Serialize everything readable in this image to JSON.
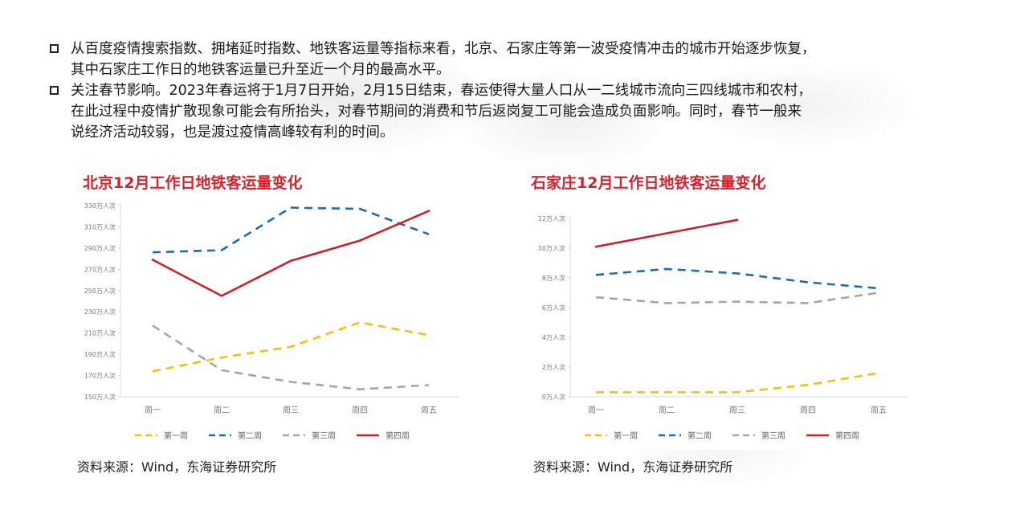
{
  "bullets": [
    {
      "lines": [
        "从百度疫情搜索指数、拥堵延时指数、地铁客运量等指标来看，北京、石家庄等第一波受疫情冲击的城市开始逐步恢复，",
        "其中石家庄工作日的地铁客运量已升至近一个月的最高水平。"
      ]
    },
    {
      "lines": [
        "关注春节影响。2023年春运将于1月7日开始，2月15日结束，春运使得大量人口从一二线城市流向三四线城市和农村，",
        "在此过程中疫情扩散现象可能会有所抬头，对春节期间的消费和节后返岗复工可能会造成负面影响。同时，春节一般来",
        "说经济活动较弱，也是渡过疫情高峰较有利的时间。"
      ]
    }
  ],
  "colors": {
    "week1": "#f2c014",
    "week2": "#1e6fa8",
    "week3": "#a6a6a6",
    "week4": "#c8232c",
    "title": "#d1242f"
  },
  "chart_data": [
    {
      "type": "line",
      "title": "北京12月工作日地铁客运量变化",
      "categories": [
        "周一",
        "周二",
        "周三",
        "周四",
        "周五"
      ],
      "ylim": [
        150,
        330
      ],
      "yticks": [
        150,
        170,
        190,
        210,
        230,
        250,
        270,
        290,
        310,
        330
      ],
      "ytick_labels": [
        "150万人次",
        "170万人次",
        "190万人次",
        "210万人次",
        "230万人次",
        "250万人次",
        "270万人次",
        "290万人次",
        "310万人次",
        "330万人次"
      ],
      "grid": false,
      "legend_position": "bottom",
      "series": [
        {
          "name": "第一周",
          "style": "dashed",
          "color_key": "week1",
          "values": [
            174,
            187,
            197,
            220,
            208
          ]
        },
        {
          "name": "第二周",
          "style": "dashed",
          "color_key": "week2",
          "values": [
            286,
            288,
            328,
            327,
            303
          ]
        },
        {
          "name": "第三周",
          "style": "dashed",
          "color_key": "week3",
          "values": [
            217,
            175,
            164,
            157,
            161
          ]
        },
        {
          "name": "第四周",
          "style": "solid",
          "color_key": "week4",
          "values": [
            279,
            245,
            278,
            297,
            325
          ]
        }
      ],
      "source": "资料来源：Wind，东海证券研究所"
    },
    {
      "type": "line",
      "title": "石家庄12月工作日地铁客运量变化",
      "categories": [
        "周一",
        "周二",
        "周三",
        "周四",
        "周五"
      ],
      "ylim": [
        0,
        12
      ],
      "yticks": [
        0,
        2,
        4,
        6,
        8,
        10,
        12
      ],
      "ytick_labels": [
        "0万人次",
        "2万人次",
        "4万人次",
        "6万人次",
        "8万人次",
        "10万人次",
        "12万人次"
      ],
      "grid": false,
      "legend_position": "bottom",
      "series": [
        {
          "name": "第一周",
          "style": "dashed",
          "color_key": "week1",
          "values": [
            0.3,
            0.3,
            0.3,
            0.8,
            1.6
          ]
        },
        {
          "name": "第二周",
          "style": "dashed",
          "color_key": "week2",
          "values": [
            8.2,
            8.6,
            8.3,
            7.7,
            7.3
          ]
        },
        {
          "name": "第三周",
          "style": "dashed",
          "color_key": "week3",
          "values": [
            6.7,
            6.3,
            6.4,
            6.3,
            7.0
          ]
        },
        {
          "name": "第四周",
          "style": "solid",
          "color_key": "week4",
          "values": [
            10.1,
            11.0,
            11.9,
            null,
            null
          ]
        }
      ],
      "source": "资料来源：Wind，东海证券研究所"
    }
  ]
}
